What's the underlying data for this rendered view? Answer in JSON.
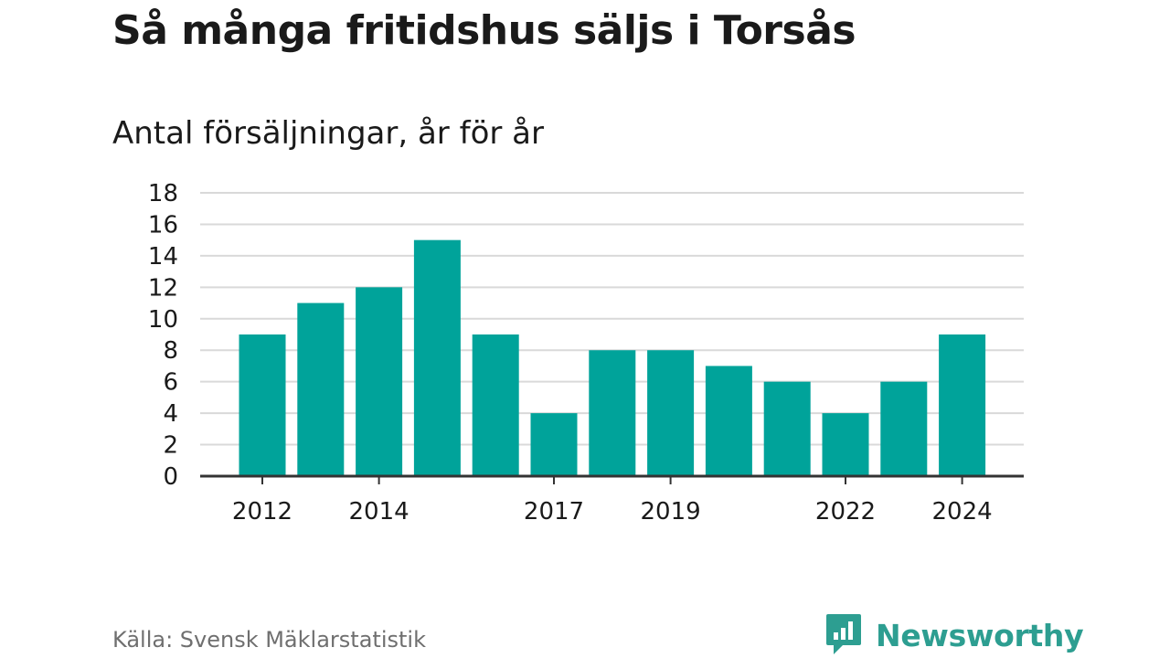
{
  "title": "Så många fritidshus säljs i Torsås",
  "subtitle": "Antal försäljningar, år för år",
  "source": "Källa: Svensk Mäklarstatistik",
  "brand": {
    "name": "Newsworthy",
    "icon": "bar-chart-speech-bubble-icon"
  },
  "colors": {
    "bar": "#00a39a",
    "grid": "#d9d9d9",
    "axis": "#333333",
    "text": "#1a1a1a",
    "source": "#6f6f6f",
    "brand": "#2d9e91"
  },
  "chart_data": {
    "type": "bar",
    "categories": [
      "2012",
      "2013",
      "2014",
      "2015",
      "2016",
      "2017",
      "2018",
      "2019",
      "2020",
      "2021",
      "2022",
      "2023",
      "2024"
    ],
    "values": [
      9,
      11,
      12,
      15,
      9,
      4,
      8,
      8,
      7,
      6,
      4,
      6,
      9
    ],
    "x_tick_labels": [
      "2012",
      "2014",
      "2017",
      "2019",
      "2022",
      "2024"
    ],
    "y_ticks": [
      0,
      2,
      4,
      6,
      8,
      10,
      12,
      14,
      16,
      18
    ],
    "ylim": [
      0,
      18
    ],
    "xlabel": "",
    "ylabel": "",
    "grid": true,
    "legend": false
  }
}
